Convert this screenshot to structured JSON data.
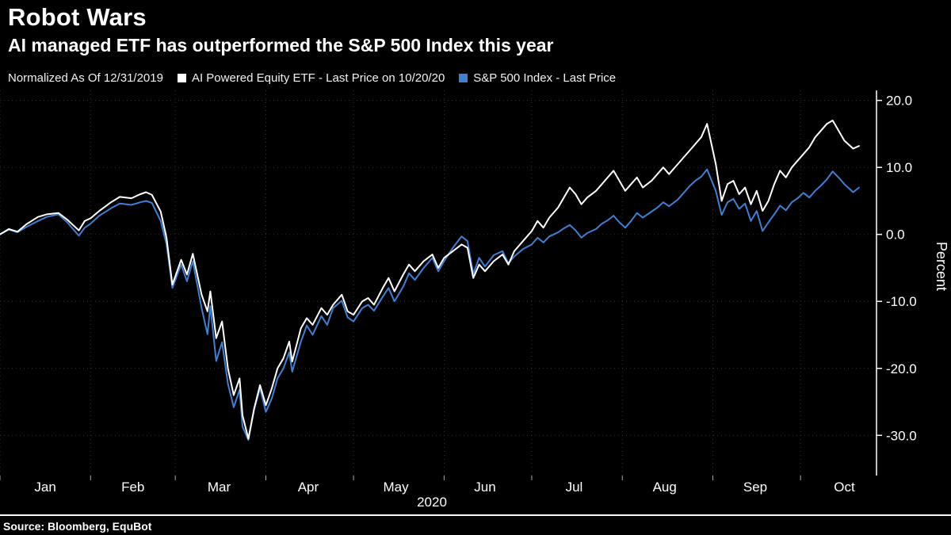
{
  "header": {
    "title": "Robot Wars",
    "subtitle": "AI managed ETF has outperformed the S&P 500 Index this year"
  },
  "legend": {
    "note": "Normalized As Of 12/31/2019",
    "series": [
      {
        "label": "AI Powered Equity ETF - Last Price on 10/20/20",
        "color": "#ffffff"
      },
      {
        "label": "S&P 500 Index - Last Price",
        "color": "#3f7fd4"
      }
    ]
  },
  "chart_data": {
    "type": "line",
    "title": "Robot Wars",
    "subtitle": "AI managed ETF has outperformed the S&P 500 Index this year",
    "note": "Normalized As Of 12/31/2019",
    "xlabel": "2020",
    "ylabel": "Percent",
    "xlim": [
      0,
      300
    ],
    "ylim": [
      -36,
      21.5
    ],
    "grid": true,
    "legend_position": "top",
    "x_unit": "day of year 2020",
    "y_ticks": [
      20.0,
      10.0,
      0.0,
      -10.0,
      -20.0,
      -30.0
    ],
    "y_tick_labels": [
      "20.0",
      "10.0",
      "0.0",
      "-10.0",
      "-20.0",
      "-30.0"
    ],
    "x_tick_labels": [
      "Jan",
      "Feb",
      "Mar",
      "Apr",
      "May",
      "Jun",
      "Jul",
      "Aug",
      "Sep",
      "Oct"
    ],
    "month_starts": [
      0,
      31,
      60,
      91,
      121,
      152,
      182,
      213,
      244,
      274
    ],
    "month_centers": [
      15.5,
      45.5,
      75,
      105.5,
      135.5,
      166,
      196.5,
      227.5,
      258.5,
      289
    ],
    "x": [
      0,
      3,
      6,
      9,
      13,
      16,
      20,
      23,
      27,
      29,
      31,
      34,
      38,
      41,
      45,
      48,
      50,
      52,
      55,
      57,
      59,
      62,
      64,
      66,
      69,
      71,
      72,
      74,
      76,
      78,
      80,
      82,
      83,
      85,
      87,
      89,
      91,
      93,
      95,
      97,
      99,
      100,
      103,
      105,
      107,
      110,
      112,
      114,
      117,
      119,
      121,
      124,
      126,
      128,
      131,
      133,
      135,
      138,
      140,
      142,
      145,
      148,
      150,
      152,
      155,
      158,
      160,
      162,
      164,
      166,
      169,
      172,
      174,
      176,
      179,
      182,
      184,
      186,
      188,
      191,
      193,
      195,
      197,
      199,
      201,
      204,
      206,
      208,
      210,
      212,
      214,
      216,
      218,
      220,
      223,
      225,
      227,
      229,
      232,
      234,
      236,
      238,
      240,
      242,
      245,
      247,
      249,
      251,
      253,
      255,
      257,
      259,
      261,
      263,
      265,
      267,
      269,
      271,
      273,
      275,
      277,
      279,
      281,
      283,
      285,
      287,
      289,
      292,
      294
    ],
    "series": [
      {
        "name": "AI Powered Equity ETF - Last Price on 10/20/20",
        "color": "#ffffff",
        "values": [
          0.0,
          0.8,
          0.4,
          1.5,
          2.6,
          3.0,
          3.2,
          2.2,
          0.6,
          2.0,
          2.4,
          3.5,
          4.8,
          5.6,
          5.4,
          6.0,
          6.3,
          5.9,
          3.4,
          -0.5,
          -7.5,
          -3.8,
          -6.0,
          -2.9,
          -9.0,
          -11.5,
          -8.5,
          -15.5,
          -13.0,
          -20.0,
          -24.0,
          -21.5,
          -27.0,
          -30.5,
          -26.0,
          -22.5,
          -25.5,
          -23.0,
          -20.0,
          -18.5,
          -16.0,
          -19.0,
          -14.0,
          -12.5,
          -13.5,
          -11.0,
          -12.0,
          -10.5,
          -9.0,
          -11.5,
          -12.0,
          -10.0,
          -9.5,
          -10.5,
          -8.0,
          -6.5,
          -8.5,
          -6.0,
          -4.5,
          -5.5,
          -4.0,
          -3.0,
          -5.0,
          -3.5,
          -2.5,
          -1.5,
          -2.0,
          -6.5,
          -4.5,
          -5.5,
          -4.0,
          -3.0,
          -4.5,
          -2.5,
          -1.0,
          0.5,
          2.0,
          1.0,
          2.5,
          4.0,
          5.5,
          7.0,
          6.0,
          4.5,
          5.5,
          6.5,
          7.5,
          8.5,
          9.5,
          8.0,
          6.5,
          7.5,
          8.5,
          7.0,
          8.0,
          9.0,
          10.0,
          9.0,
          10.5,
          11.5,
          12.5,
          13.5,
          14.5,
          16.5,
          10.5,
          5.0,
          7.5,
          8.0,
          6.0,
          7.0,
          4.5,
          6.5,
          3.5,
          5.0,
          7.5,
          9.5,
          8.5,
          10.0,
          11.0,
          12.0,
          13.0,
          14.5,
          15.5,
          16.5,
          17.0,
          15.5,
          14.0,
          12.8,
          13.2
        ]
      },
      {
        "name": "S&P 500 Index - Last Price",
        "color": "#3f7fd4",
        "values": [
          0.0,
          0.7,
          0.3,
          1.1,
          2.0,
          2.6,
          3.0,
          1.8,
          -0.2,
          1.0,
          1.6,
          2.8,
          3.9,
          4.6,
          4.4,
          4.8,
          5.0,
          4.7,
          2.0,
          -1.5,
          -8.0,
          -4.5,
          -7.0,
          -4.0,
          -11.0,
          -14.9,
          -10.7,
          -18.9,
          -16.1,
          -22.3,
          -25.8,
          -23.2,
          -28.7,
          -30.7,
          -26.1,
          -23.0,
          -26.5,
          -24.5,
          -21.5,
          -20.0,
          -17.6,
          -20.5,
          -16.0,
          -13.6,
          -15.0,
          -12.2,
          -13.5,
          -11.0,
          -9.9,
          -12.4,
          -13.0,
          -11.0,
          -10.5,
          -11.4,
          -9.3,
          -8.0,
          -10.0,
          -7.8,
          -5.8,
          -6.8,
          -5.0,
          -3.5,
          -5.5,
          -4.0,
          -2.0,
          -0.3,
          -1.0,
          -5.9,
          -3.5,
          -4.8,
          -3.1,
          -2.5,
          -4.3,
          -3.3,
          -2.2,
          -1.5,
          -0.5,
          -1.2,
          -0.3,
          0.3,
          0.9,
          1.4,
          0.6,
          -0.5,
          0.2,
          0.8,
          1.6,
          2.1,
          2.8,
          1.8,
          1.0,
          2.0,
          3.2,
          2.5,
          3.4,
          4.0,
          4.8,
          4.2,
          5.2,
          6.2,
          7.2,
          8.0,
          8.6,
          9.7,
          6.5,
          2.9,
          4.8,
          5.3,
          3.8,
          4.6,
          2.0,
          3.5,
          0.5,
          1.8,
          3.0,
          4.3,
          3.6,
          4.8,
          5.4,
          6.2,
          5.5,
          6.5,
          7.3,
          8.2,
          9.4,
          8.5,
          7.5,
          6.3,
          7.0
        ]
      }
    ]
  },
  "footer": {
    "source": "Source: Bloomberg, EquBot"
  }
}
